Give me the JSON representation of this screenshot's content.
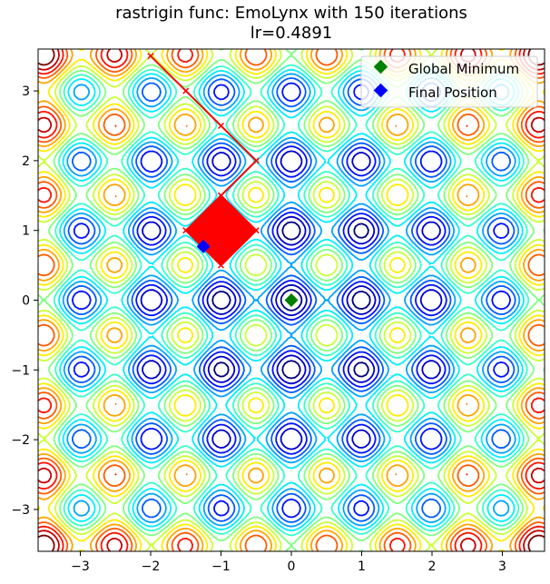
{
  "chart_data": {
    "type": "contour",
    "function": "rastrigin",
    "title": "rastrigin func: EmoLynx with 150 iterations",
    "subtitle": "lr=0.4891",
    "xlabel": "",
    "ylabel": "",
    "xlim": [
      -3.6,
      3.6
    ],
    "ylim": [
      -3.6,
      3.6
    ],
    "x_ticks": [
      -3,
      -2,
      -1,
      0,
      1,
      2,
      3
    ],
    "y_ticks": [
      -3,
      -2,
      -1,
      0,
      1,
      2,
      3
    ],
    "x_tick_labels": [
      "−3",
      "−2",
      "−1",
      "0",
      "1",
      "2",
      "3"
    ],
    "y_tick_labels": [
      "−3",
      "−2",
      "−1",
      "0",
      "1",
      "2",
      "3"
    ],
    "colormap": [
      "#00007f",
      "#0000ff",
      "#0080ff",
      "#00ffff",
      "#80ff80",
      "#ffff00",
      "#ff8000",
      "#ff0000",
      "#7f0000"
    ],
    "path_color": "#ff0000",
    "path": [
      [
        -2.0,
        3.5
      ],
      [
        -1.5,
        3.0
      ],
      [
        -1.0,
        2.5
      ],
      [
        -0.5,
        2.0
      ],
      [
        -1.0,
        1.5
      ],
      [
        -1.5,
        1.0
      ],
      [
        -1.0,
        0.5
      ],
      [
        -0.5,
        1.0
      ],
      [
        -1.0,
        1.5
      ]
    ],
    "oscillation_region": {
      "center": [
        -1.0,
        1.0
      ],
      "half_width": 0.5
    },
    "global_minimum": [
      0.0,
      0.0
    ],
    "final_position": [
      -1.25,
      0.77
    ],
    "legend": {
      "position": "top-right",
      "items": [
        {
          "label": "Global Minimum",
          "color": "#008000",
          "marker": "diamond"
        },
        {
          "label": "Final Position",
          "color": "#0000ff",
          "marker": "diamond"
        }
      ]
    }
  }
}
